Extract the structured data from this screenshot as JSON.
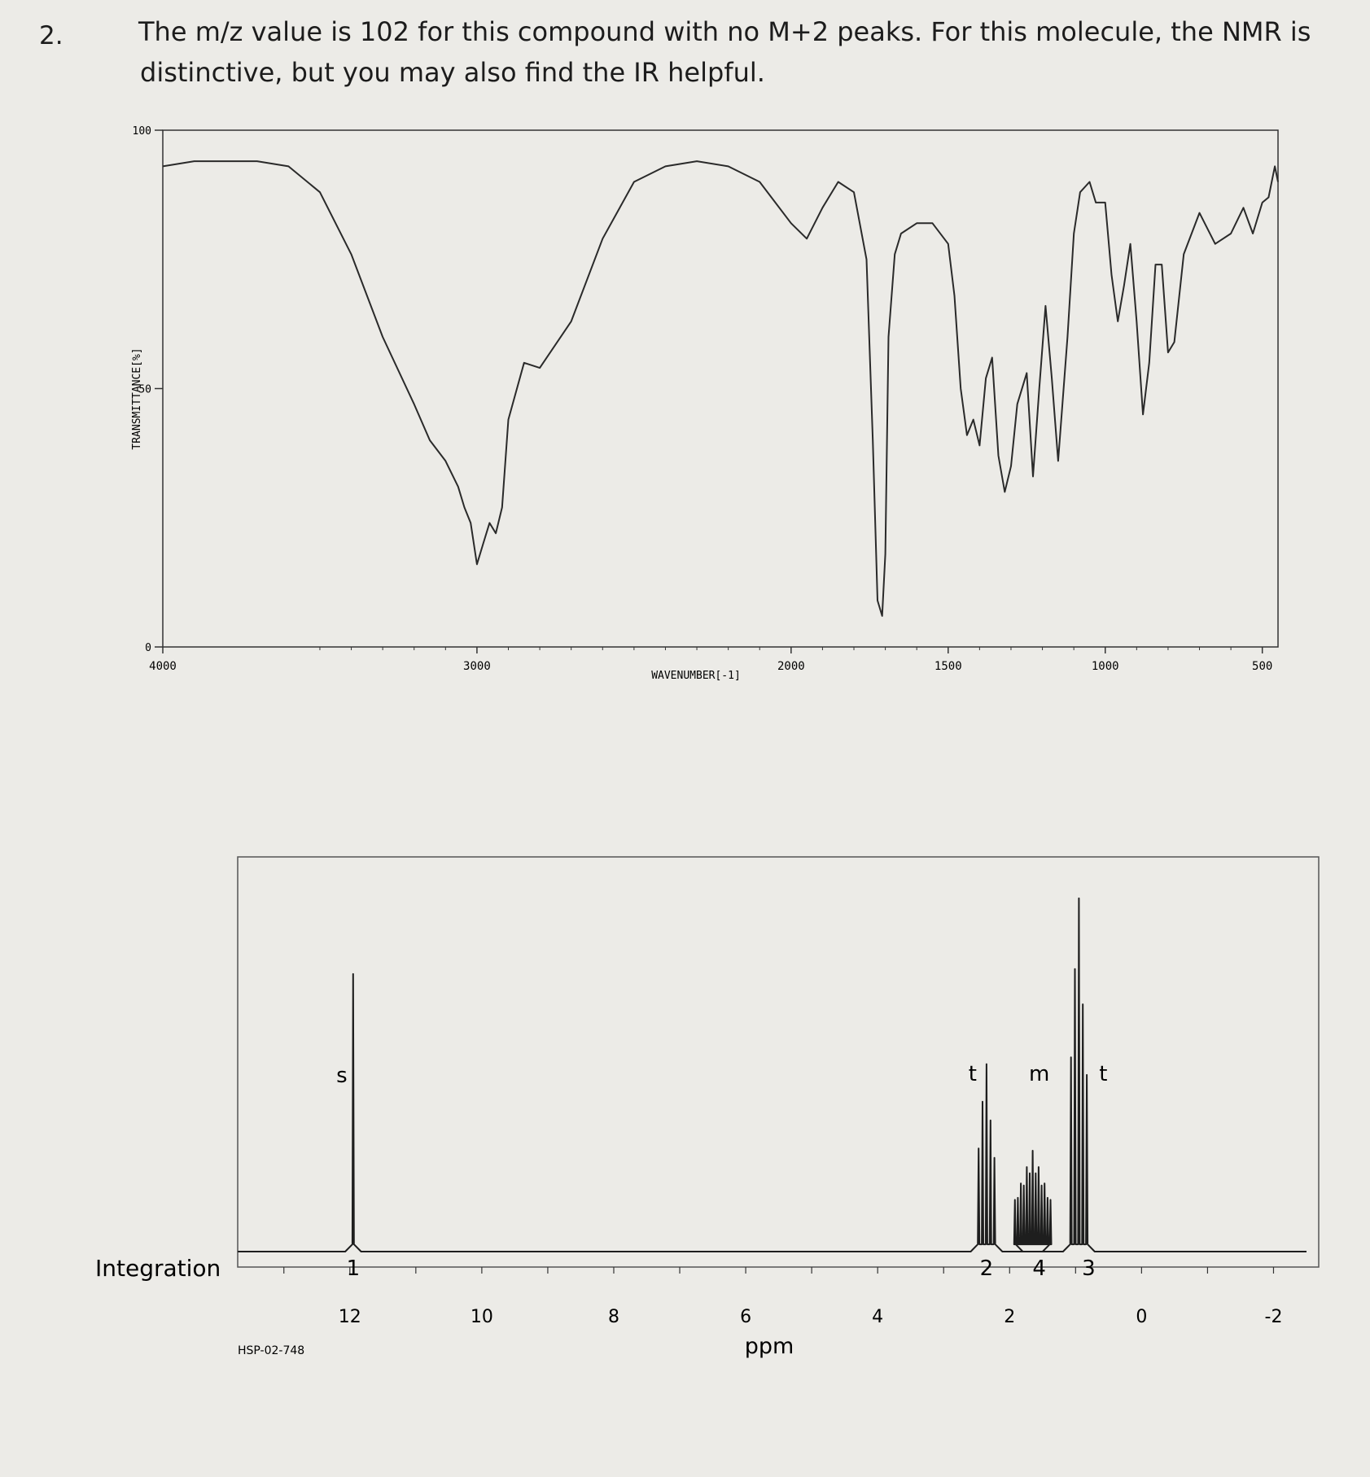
{
  "question": {
    "number": "2.",
    "line1": "The m/z value is 102 for this compound with no M+2 peaks. For this molecule, the NMR is",
    "line2": "distinctive, but you may also find the IR helpful."
  },
  "chart_data": [
    {
      "type": "line",
      "ylabel": "TRANSMITTANCE[%]",
      "xlabel": "WAVENUMBER[-1]",
      "xlim": [
        4000,
        450
      ],
      "ylim": [
        0,
        100
      ],
      "x_ticks": [
        4000,
        3000,
        2000,
        1500,
        1000,
        500
      ],
      "y_ticks": [
        0,
        50,
        100
      ],
      "series": [
        {
          "x": [
            4000,
            3900,
            3800,
            3700,
            3600,
            3500,
            3400,
            3300,
            3200,
            3150,
            3100,
            3060,
            3040,
            3020,
            3000,
            2980,
            2960,
            2940,
            2920,
            2900,
            2850,
            2800,
            2700,
            2600,
            2500,
            2400,
            2300,
            2200,
            2100,
            2000,
            1950,
            1900,
            1850,
            1800,
            1760,
            1740,
            1725,
            1710,
            1700,
            1690,
            1670,
            1650,
            1600,
            1550,
            1500,
            1480,
            1460,
            1440,
            1420,
            1400,
            1380,
            1360,
            1340,
            1320,
            1300,
            1280,
            1250,
            1230,
            1210,
            1190,
            1170,
            1150,
            1120,
            1100,
            1080,
            1050,
            1030,
            1000,
            980,
            960,
            940,
            920,
            900,
            880,
            860,
            840,
            820,
            800,
            780,
            750,
            700,
            650,
            600,
            560,
            530,
            500,
            480,
            460,
            450
          ],
          "y": [
            93,
            94,
            94,
            94,
            93,
            88,
            76,
            60,
            47,
            40,
            36,
            31,
            27,
            24,
            16,
            20,
            24,
            22,
            27,
            44,
            55,
            54,
            63,
            79,
            90,
            93,
            94,
            93,
            90,
            82,
            79,
            85,
            90,
            88,
            75,
            40,
            9,
            6,
            18,
            60,
            76,
            80,
            82,
            82,
            78,
            68,
            50,
            41,
            44,
            39,
            52,
            56,
            37,
            30,
            35,
            47,
            53,
            33,
            50,
            66,
            52,
            36,
            60,
            80,
            88,
            90,
            86,
            86,
            72,
            63,
            70,
            78,
            63,
            45,
            55,
            74,
            74,
            57,
            59,
            76,
            84,
            78,
            80,
            85,
            80,
            86,
            87,
            93,
            90
          ]
        }
      ]
    },
    {
      "type": "line",
      "xlabel": "ppm",
      "xlim": [
        13.7,
        -2.5
      ],
      "x_ticks": [
        12,
        10,
        8,
        6,
        4,
        2,
        0,
        -2
      ],
      "sample_id": "HSP-02-748",
      "integration_label": "Integration",
      "peaks": [
        {
          "shift": 11.95,
          "multiplicity": "s",
          "integration": "1",
          "height": 0.77
        },
        {
          "shift": 2.35,
          "multiplicity": "t",
          "integration": "2",
          "height": 0.52
        },
        {
          "shift": 1.65,
          "multiplicity": "m",
          "integration": "4",
          "height": 0.28
        },
        {
          "shift": 0.95,
          "multiplicity": "t",
          "integration": "3",
          "height": 0.98
        }
      ]
    }
  ]
}
